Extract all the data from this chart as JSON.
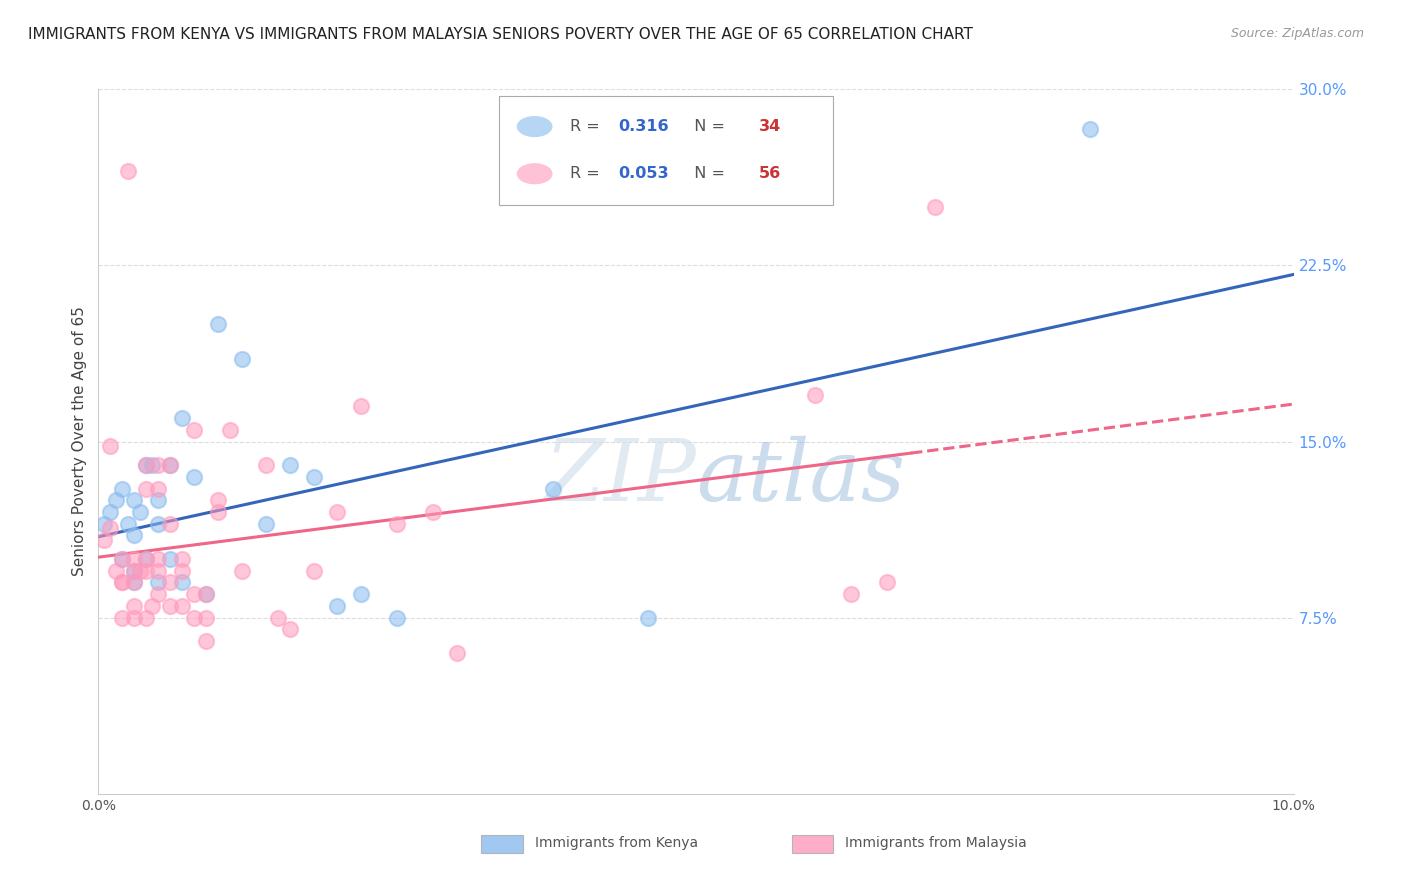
{
  "title": "IMMIGRANTS FROM KENYA VS IMMIGRANTS FROM MALAYSIA SENIORS POVERTY OVER THE AGE OF 65 CORRELATION CHART",
  "source": "Source: ZipAtlas.com",
  "ylabel": "Seniors Poverty Over the Age of 65",
  "xlim": [
    0.0,
    0.1
  ],
  "ylim": [
    0.0,
    0.3
  ],
  "yticks_right": [
    0.075,
    0.15,
    0.225,
    0.3
  ],
  "yticks_right_labels": [
    "7.5%",
    "15.0%",
    "22.5%",
    "30.0%"
  ],
  "kenya_R": 0.316,
  "kenya_N": 34,
  "malaysia_R": 0.053,
  "malaysia_N": 56,
  "kenya_color": "#88BBEE",
  "malaysia_color": "#FF99BB",
  "kenya_line_color": "#3366BB",
  "malaysia_line_color": "#EE6688",
  "background_color": "#FFFFFF",
  "kenya_x": [
    0.0005,
    0.001,
    0.0015,
    0.002,
    0.002,
    0.0025,
    0.003,
    0.003,
    0.003,
    0.003,
    0.0035,
    0.004,
    0.004,
    0.0045,
    0.005,
    0.005,
    0.005,
    0.006,
    0.006,
    0.007,
    0.007,
    0.008,
    0.009,
    0.01,
    0.012,
    0.014,
    0.016,
    0.018,
    0.02,
    0.022,
    0.025,
    0.038,
    0.046,
    0.083
  ],
  "kenya_y": [
    0.115,
    0.12,
    0.125,
    0.1,
    0.13,
    0.115,
    0.11,
    0.125,
    0.095,
    0.09,
    0.12,
    0.14,
    0.1,
    0.14,
    0.09,
    0.125,
    0.115,
    0.14,
    0.1,
    0.16,
    0.09,
    0.135,
    0.085,
    0.2,
    0.185,
    0.115,
    0.14,
    0.135,
    0.08,
    0.085,
    0.075,
    0.13,
    0.075,
    0.283
  ],
  "malaysia_x": [
    0.0005,
    0.001,
    0.001,
    0.0015,
    0.002,
    0.002,
    0.002,
    0.002,
    0.0025,
    0.003,
    0.003,
    0.003,
    0.003,
    0.003,
    0.0035,
    0.004,
    0.004,
    0.004,
    0.004,
    0.004,
    0.0045,
    0.005,
    0.005,
    0.005,
    0.005,
    0.005,
    0.006,
    0.006,
    0.006,
    0.006,
    0.007,
    0.007,
    0.007,
    0.008,
    0.008,
    0.008,
    0.009,
    0.009,
    0.009,
    0.01,
    0.01,
    0.011,
    0.012,
    0.014,
    0.015,
    0.016,
    0.018,
    0.02,
    0.022,
    0.025,
    0.028,
    0.03,
    0.06,
    0.063,
    0.066,
    0.07
  ],
  "malaysia_y": [
    0.108,
    0.148,
    0.113,
    0.095,
    0.09,
    0.075,
    0.09,
    0.1,
    0.265,
    0.1,
    0.08,
    0.075,
    0.09,
    0.095,
    0.095,
    0.095,
    0.1,
    0.13,
    0.14,
    0.075,
    0.08,
    0.085,
    0.13,
    0.14,
    0.1,
    0.095,
    0.09,
    0.08,
    0.115,
    0.14,
    0.095,
    0.08,
    0.1,
    0.085,
    0.075,
    0.155,
    0.075,
    0.065,
    0.085,
    0.125,
    0.12,
    0.155,
    0.095,
    0.14,
    0.075,
    0.07,
    0.095,
    0.12,
    0.165,
    0.115,
    0.12,
    0.06,
    0.17,
    0.085,
    0.09,
    0.25
  ],
  "grid_color": "#DDDDDD",
  "title_fontsize": 11,
  "axis_label_fontsize": 11,
  "tick_fontsize": 10,
  "marker_size": 120,
  "marker_alpha": 0.55,
  "legend_r1": "R = ",
  "legend_r1_val": "0.316",
  "legend_n1": "  N = ",
  "legend_n1_val": "34",
  "legend_r2": "R = ",
  "legend_r2_val": "0.053",
  "legend_n2": "  N = ",
  "legend_n2_val": "56",
  "r_color": "#3366CC",
  "n_color": "#CC3333",
  "legend_label_color": "#555555",
  "bottom_legend_kenya": "Immigrants from Kenya",
  "bottom_legend_malaysia": "Immigrants from Malaysia"
}
